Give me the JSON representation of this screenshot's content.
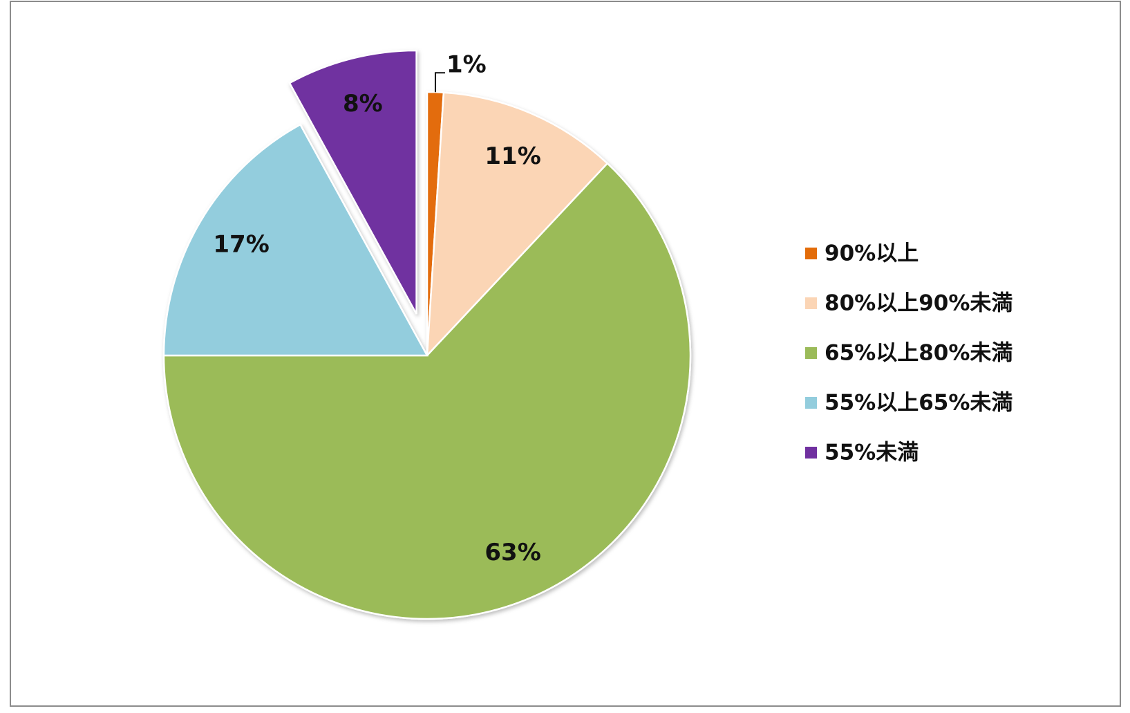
{
  "chart_data": {
    "type": "pie",
    "categories": [
      "90%以上",
      "80%以上90%未満",
      "65%以上80%未満",
      "55%以上65%未満",
      "55%未満"
    ],
    "values": [
      1,
      11,
      63,
      17,
      8
    ],
    "value_labels": [
      "1%",
      "11%",
      "63%",
      "17%",
      "8%"
    ],
    "colors": [
      "#e36c09",
      "#fbd5b5",
      "#9bbb59",
      "#93cddd",
      "#7030a0"
    ],
    "exploded": [
      4
    ],
    "legend": "right"
  }
}
